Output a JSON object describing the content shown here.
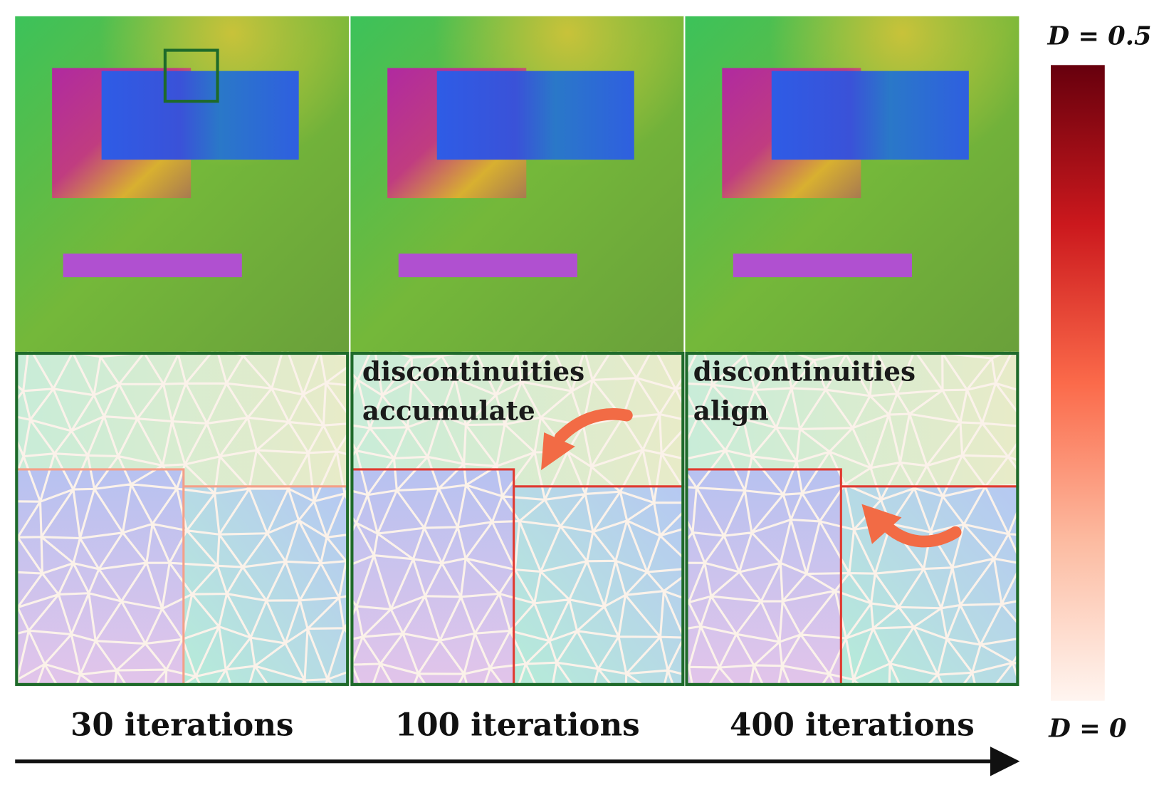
{
  "figure": {
    "colorbar": {
      "top_label": "D = 0.5",
      "bottom_label": "D = 0"
    },
    "panels": [
      {
        "label": "30 iterations"
      },
      {
        "label": "100 iterations",
        "annotation": [
          "discontinuities",
          "accumulate"
        ]
      },
      {
        "label": "400 iterations",
        "annotation": [
          "discontinuities",
          "align"
        ]
      }
    ]
  }
}
